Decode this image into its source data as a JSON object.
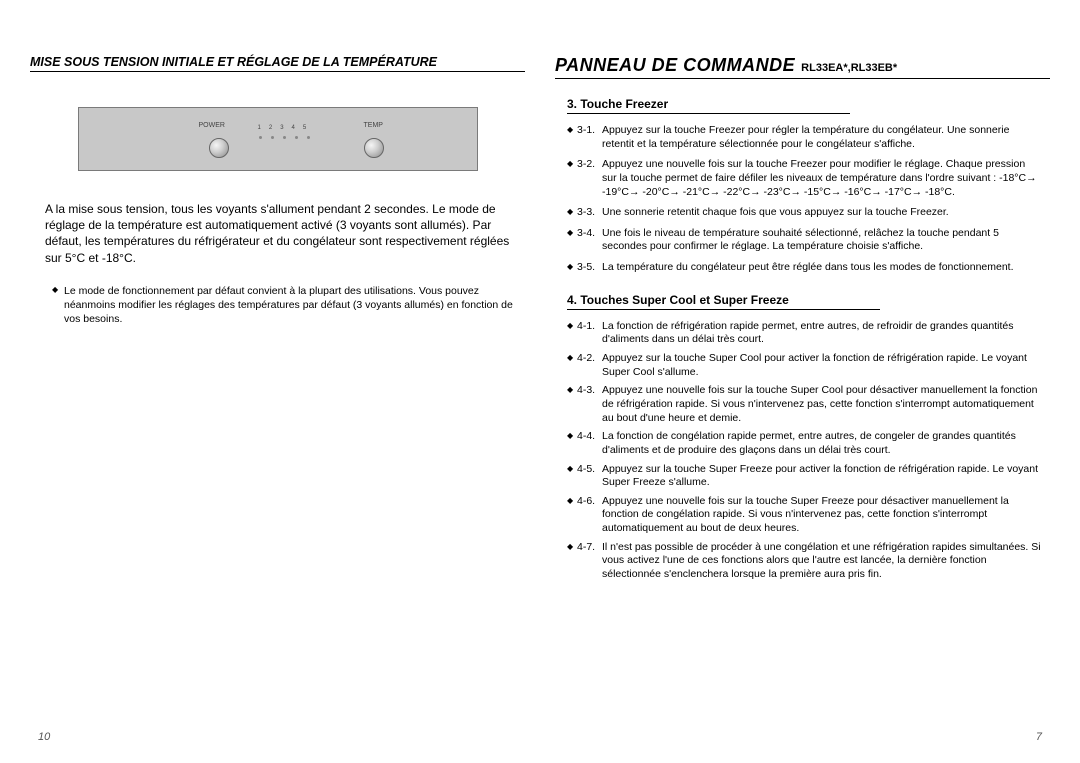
{
  "left": {
    "title": "MISE SOUS TENSION INITIALE ET RÉGLAGE DE LA TEMPÉRATURE",
    "panel": {
      "label_power": "POWER",
      "label_temp": "TEMP",
      "led_numbers": [
        "1",
        "2",
        "3",
        "4",
        "5"
      ]
    },
    "paragraph": "A la mise sous tension, tous les voyants s'allument pendant 2 secondes. Le mode de réglage de la température est automatiquement activé (3 voyants sont allumés). Par défaut, les températures du réfrigérateur et du congélateur sont respectivement réglées sur 5°C et -18°C.",
    "notes": [
      "Le mode de fonctionnement par défaut convient à la plupart des utilisations. Vous pouvez néanmoins modifier les réglages des températures par défaut (3 voyants allumés) en fonction de vos besoins."
    ],
    "page_num": "10"
  },
  "right": {
    "title": "PANNEAU DE COMMANDE",
    "model": "RL33EA*,RL33EB*",
    "section3": {
      "head": "3. Touche Freezer",
      "items": [
        {
          "n": "3-1.",
          "t": "Appuyez sur la touche Freezer pour régler la température du congélateur. Une sonnerie retentit et la température sélectionnée pour le congélateur s'affiche."
        },
        {
          "n": "3-2.",
          "t": "Appuyez une nouvelle fois sur la touche Freezer pour modifier le réglage. Chaque pression sur la touche permet de faire défiler les niveaux de température dans l'ordre suivant : -18°C→ -19°C→ -20°C→ -21°C→ -22°C→ -23°C→ -15°C→ -16°C→ -17°C→ -18°C."
        },
        {
          "n": "3-3.",
          "t": "Une sonnerie retentit chaque fois que vous appuyez sur la touche Freezer."
        },
        {
          "n": "3-4.",
          "t": "Une fois le niveau de température souhaité sélectionné, relâchez la touche pendant 5 secondes pour confirmer le réglage. La température choisie s'affiche."
        },
        {
          "n": "3-5.",
          "t": "La température du congélateur peut être réglée dans tous les modes de fonctionnement."
        }
      ]
    },
    "section4": {
      "head": "4. Touches Super Cool et Super Freeze",
      "items": [
        {
          "n": "4-1.",
          "t": "La fonction de réfrigération rapide permet, entre autres, de refroidir de grandes quantités d'aliments dans un délai très court."
        },
        {
          "n": "4-2.",
          "t": "Appuyez sur la touche Super Cool pour activer la fonction de réfrigération rapide. Le voyant Super Cool s'allume."
        },
        {
          "n": "4-3.",
          "t": "Appuyez une nouvelle fois sur la touche Super Cool pour désactiver manuellement la fonction de réfrigération rapide. Si vous n'intervenez pas, cette fonction s'interrompt automatiquement au bout d'une heure et demie."
        },
        {
          "n": "4-4.",
          "t": "La fonction de congélation rapide permet, entre autres, de congeler de grandes quantités d'aliments et de produire des glaçons dans un délai très court."
        },
        {
          "n": "4-5.",
          "t": "Appuyez sur la touche Super Freeze pour activer la fonction de réfrigération rapide. Le voyant Super Freeze s'allume."
        },
        {
          "n": "4-6.",
          "t": "Appuyez une nouvelle fois sur la touche Super Freeze pour désactiver manuellement la fonction de congélation rapide. Si vous n'intervenez pas, cette fonction s'interrompt automatiquement au bout de deux heures."
        },
        {
          "n": "4-7.",
          "t": "Il n'est pas possible de procéder à une congélation et une réfrigération rapides simultanées. Si vous activez l'une de ces fonctions alors que l'autre est lancée, la dernière fonction sélectionnée s'enclenchera lorsque la première aura pris fin."
        }
      ]
    },
    "page_num": "7"
  }
}
